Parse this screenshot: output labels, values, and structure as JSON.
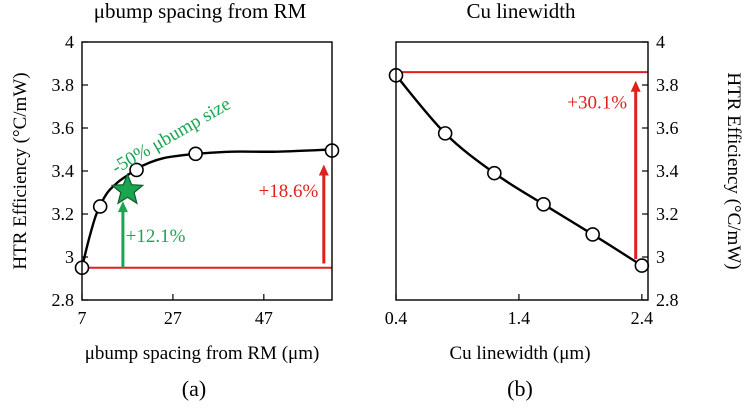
{
  "colors": {
    "axis": "#000000",
    "curve": "#000000",
    "red": "#e0201f",
    "green": "#1aa550",
    "text": "#000000"
  },
  "chart_data": [
    {
      "type": "line",
      "title": "μbump spacing from RM",
      "xlabel": "μbump spacing from RM (μm)",
      "ylabel": "HTR Efficiency (°C/mW)",
      "panel_label": "(a)",
      "xlim": [
        7,
        62
      ],
      "ylim": [
        2.8,
        4.0
      ],
      "xticks": [
        7,
        27,
        47
      ],
      "xtick_labels": [
        "7",
        "27",
        "47"
      ],
      "yticks": [
        2.8,
        3.0,
        3.2,
        3.4,
        3.6,
        3.8,
        4.0
      ],
      "ytick_labels": [
        "2.8",
        "3",
        "3.2",
        "3.4",
        "3.6",
        "3.8",
        "4"
      ],
      "curve": [
        [
          7,
          2.95
        ],
        [
          8,
          3.04
        ],
        [
          9,
          3.12
        ],
        [
          10,
          3.19
        ],
        [
          11,
          3.24
        ],
        [
          12,
          3.28
        ],
        [
          13,
          3.31
        ],
        [
          15,
          3.35
        ],
        [
          17,
          3.38
        ],
        [
          19,
          3.41
        ],
        [
          22,
          3.44
        ],
        [
          25,
          3.46
        ],
        [
          28,
          3.47
        ],
        [
          32,
          3.48
        ],
        [
          40,
          3.49
        ],
        [
          50,
          3.49
        ],
        [
          62,
          3.5
        ]
      ],
      "points": [
        {
          "x": 7,
          "y": 2.95
        },
        {
          "x": 11,
          "y": 3.235
        },
        {
          "x": 19,
          "y": 3.405
        },
        {
          "x": 32,
          "y": 3.48
        },
        {
          "x": 62,
          "y": 3.495
        }
      ],
      "star": {
        "x": 17,
        "y": 3.31
      },
      "reference_line": {
        "y": 2.95,
        "x_from": 7,
        "x_to": 62
      },
      "arrows": [
        {
          "x": 16,
          "y_from": 2.95,
          "y_to": 3.26,
          "color": "green"
        },
        {
          "x": 60.2,
          "y_from": 2.97,
          "y_to": 3.43,
          "color": "red"
        }
      ],
      "annotations": [
        {
          "text": "+12.1%",
          "x": 16.6,
          "y": 3.07,
          "color": "green",
          "anchor": "start"
        },
        {
          "text": "+18.6%",
          "x": 59.0,
          "y": 3.28,
          "color": "red",
          "anchor": "end"
        },
        {
          "text": "-50% μbump size",
          "x": 14.5,
          "y": 3.385,
          "color": "green",
          "anchor": "start",
          "rotate": -30
        }
      ]
    },
    {
      "type": "line",
      "title": "Cu linewidth",
      "xlabel": "Cu linewidth (μm)",
      "ylabel": "HTR Efficiency (°C/mW)",
      "panel_label": "(b)",
      "xlim": [
        0.4,
        2.45
      ],
      "ylim": [
        2.8,
        4.0
      ],
      "xticks": [
        0.4,
        1.4,
        2.4
      ],
      "xtick_labels": [
        "0.4",
        "1.4",
        "2.4"
      ],
      "yticks": [
        2.8,
        3.0,
        3.2,
        3.4,
        3.6,
        3.8,
        4.0
      ],
      "ytick_labels": [
        "2.8",
        "3",
        "3.2",
        "3.4",
        "3.6",
        "3.8",
        "4"
      ],
      "points": [
        {
          "x": 0.4,
          "y": 3.845
        },
        {
          "x": 0.8,
          "y": 3.575
        },
        {
          "x": 1.2,
          "y": 3.39
        },
        {
          "x": 1.6,
          "y": 3.245
        },
        {
          "x": 2.0,
          "y": 3.105
        },
        {
          "x": 2.4,
          "y": 2.96
        }
      ],
      "reference_line": {
        "y": 3.86,
        "x_from": 0.4,
        "x_to": 2.45
      },
      "arrows": [
        {
          "x": 2.35,
          "y_from": 2.99,
          "y_to": 3.82,
          "color": "red"
        }
      ],
      "annotations": [
        {
          "text": "+30.1%",
          "x": 2.28,
          "y": 3.69,
          "color": "red",
          "anchor": "end"
        }
      ]
    }
  ]
}
